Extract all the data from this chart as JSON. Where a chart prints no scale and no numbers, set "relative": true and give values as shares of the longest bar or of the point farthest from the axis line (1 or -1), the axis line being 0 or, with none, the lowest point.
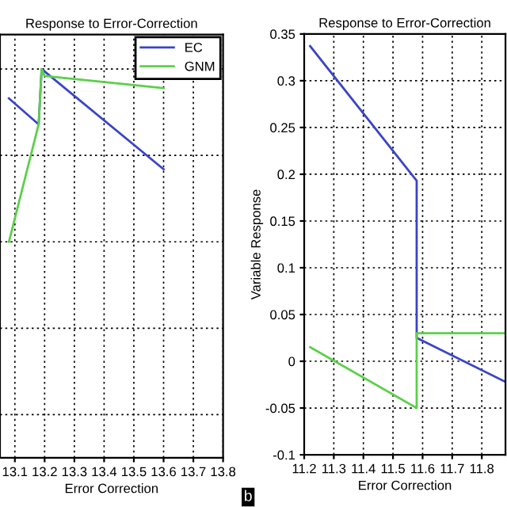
{
  "chart_data": [
    {
      "type": "line",
      "title": "Response to Error-Correction",
      "xlabel": "Error Correction",
      "relative": true,
      "xlim": [
        13.05,
        13.8
      ],
      "xticks": [
        13.1,
        13.2,
        13.3,
        13.4,
        13.5,
        13.6,
        13.7,
        13.8
      ],
      "tick_labels": "x",
      "grid": true,
      "legend": "top right",
      "series": [
        {
          "name": "EC",
          "color": "#3a44c8",
          "x": [
            13.08,
            13.18,
            13.19,
            13.6
          ],
          "values": [
            0.83,
            0.68,
            1,
            0.42
          ]
        },
        {
          "name": "GNM",
          "color": "#5cd04a",
          "x": [
            13.08,
            13.18,
            13.19,
            13.2,
            13.6
          ],
          "values": [
            0,
            0.68,
            1,
            0.96,
            0.89
          ]
        }
      ]
    },
    {
      "type": "line",
      "title": "Response to Error-Correction",
      "xlabel": "Error Correction",
      "ylabel": "Variable Response",
      "xlim": [
        11.2,
        11.88
      ],
      "xticks": [
        11.2,
        11.3,
        11.4,
        11.5,
        11.6,
        11.7,
        11.8
      ],
      "ylim": [
        -0.1,
        0.35
      ],
      "yticks": [
        -0.1,
        -0.05,
        0,
        0.05,
        0.1,
        0.15,
        0.2,
        0.25,
        0.3,
        0.35
      ],
      "grid": true,
      "annotations": [
        "b"
      ],
      "series": [
        {
          "color": "#3a44c8",
          "x": [
            11.22,
            11.58,
            11.58,
            11.88
          ],
          "values": [
            0.337,
            0.193,
            0.025,
            -0.022
          ]
        },
        {
          "color": "#5cd04a",
          "x": [
            11.22,
            11.58,
            11.58,
            11.88
          ],
          "values": [
            0.015,
            -0.05,
            0.03,
            0.03
          ]
        }
      ]
    }
  ]
}
